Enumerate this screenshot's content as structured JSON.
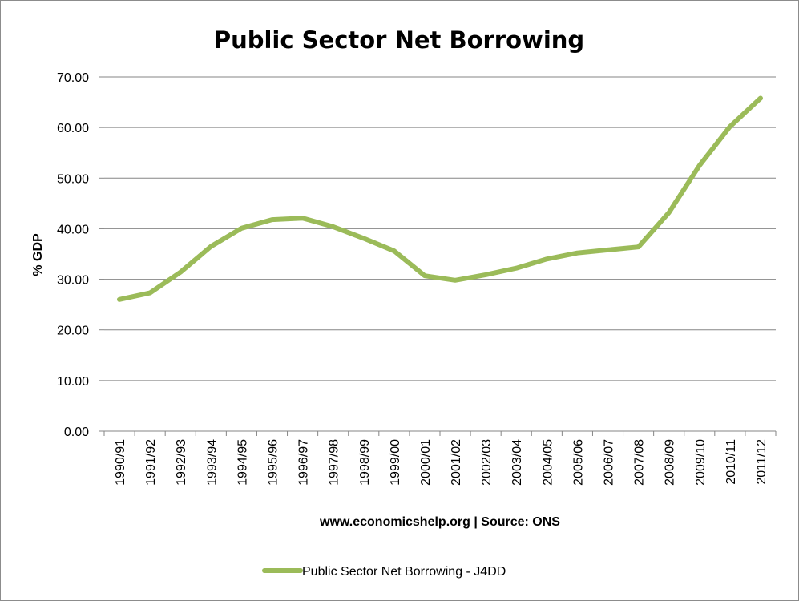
{
  "chart_data": {
    "type": "line",
    "title": "Public Sector Net Borrowing",
    "xlabel": "www.economicshelp.org | Source: ONS",
    "ylabel": "% GDP",
    "ylim": [
      0,
      70
    ],
    "y_ticks": [
      "0.00",
      "10.00",
      "20.00",
      "30.00",
      "40.00",
      "50.00",
      "60.00",
      "70.00"
    ],
    "grid": true,
    "legend_position": "bottom",
    "categories": [
      "1990/91",
      "1991/92",
      "1992/93",
      "1993/94",
      "1994/95",
      "1995/96",
      "1996/97",
      "1997/98",
      "1998/99",
      "1999/00",
      "2000/01",
      "2001/02",
      "2002/03",
      "2003/04",
      "2004/05",
      "2005/06",
      "2006/07",
      "2007/08",
      "2008/09",
      "2009/10",
      "2010/11",
      "2011/12"
    ],
    "series": [
      {
        "name": "Public Sector Net Borrowing - J4DD",
        "color": "#9bbb59",
        "values": [
          26.0,
          27.3,
          31.4,
          36.5,
          40.1,
          41.8,
          42.1,
          40.4,
          38.1,
          35.6,
          30.7,
          29.8,
          30.9,
          32.2,
          34.0,
          35.2,
          35.8,
          36.4,
          43.2,
          52.5,
          60.2,
          65.8
        ]
      }
    ]
  }
}
